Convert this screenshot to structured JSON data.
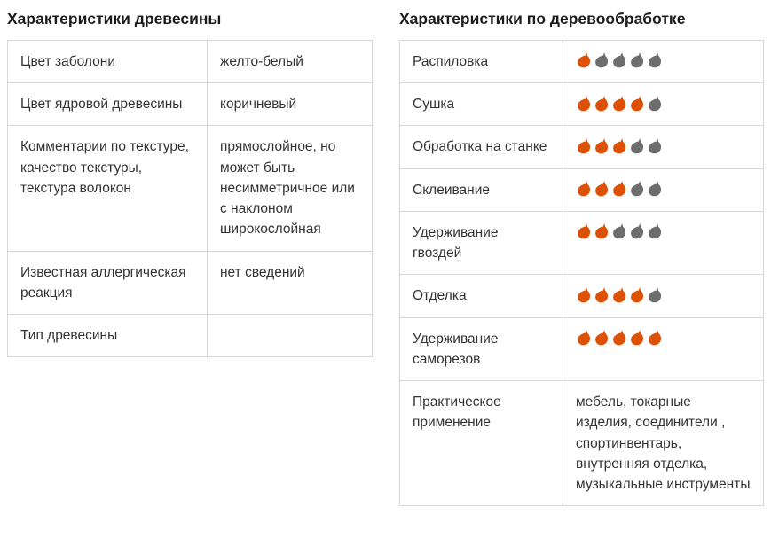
{
  "left_table": {
    "title": "Характеристики древесины",
    "rows": [
      {
        "label": "Цвет заболони",
        "value": "желто-белый"
      },
      {
        "label": "Цвет ядровой древесины",
        "value": "коричневый"
      },
      {
        "label": "Комментарии по текстуре, качество текстуры, текстура волокон",
        "value": "прямослойное, но может быть несимметричное или с наклоном широкослойная"
      },
      {
        "label": "Известная аллергическая реакция",
        "value": "нет сведений"
      },
      {
        "label": "Тип древесины",
        "value": ""
      }
    ]
  },
  "right_table": {
    "title": "Характеристики по деревообработке",
    "rating_max": 5,
    "colors": {
      "leaf_active": "#dd5106",
      "leaf_inactive": "#6d6d6d"
    },
    "rows": [
      {
        "label": "Распиловка",
        "rating": 1
      },
      {
        "label": "Сушка",
        "rating": 4
      },
      {
        "label": "Обработка на станке",
        "rating": 3
      },
      {
        "label": "Склеивание",
        "rating": 3
      },
      {
        "label": "Удерживание гвоздей",
        "rating": 2
      },
      {
        "label": "Отделка",
        "rating": 4
      },
      {
        "label": "Удерживание саморезов",
        "rating": 5
      },
      {
        "label": "Практическое применение",
        "value": "мебель, токарные изделия, соединители , спортинвентарь, внутренняя отделка, музыкальные инструменты"
      }
    ]
  }
}
